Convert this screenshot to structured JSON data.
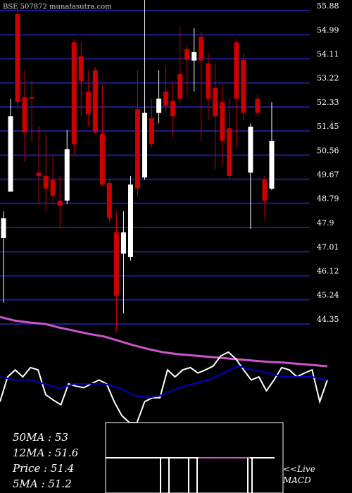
{
  "chart_data": [
    {
      "type": "candlestick",
      "title": "BSE 507872 munafasutra.com",
      "open": [
        47.51,
        49.22,
        55.75,
        52.69,
        52.69,
        49.92,
        49.79,
        49.66,
        48.89,
        48.89,
        54.71,
        54.2,
        52.9,
        53.68,
        51.35,
        49.53,
        47.72,
        46.94,
        46.81,
        52.25,
        49.74,
        51.92,
        52.12,
        52.9,
        52.56,
        53.55,
        54.46,
        54.04,
        54.92,
        53.94,
        53.03,
        52.51,
        51.55,
        54.71,
        54.07,
        49.92,
        52.64,
        49.66,
        49.33
      ],
      "high": [
        48.5,
        52.64,
        56.01,
        53.68,
        53.29,
        51.61,
        51.35,
        50.57,
        49.79,
        51.48,
        54.84,
        54.71,
        53.68,
        53.81,
        53.16,
        49.66,
        48.5,
        48.5,
        49.79,
        53.68,
        56.27,
        52.64,
        53.68,
        53.81,
        53.29,
        55.28,
        54.58,
        55.23,
        55.1,
        54.33,
        53.94,
        53.16,
        52.64,
        54.84,
        54.33,
        51.73,
        52.77,
        49.79,
        52.51
      ],
      "low": [
        45.13,
        49.22,
        52.38,
        50.31,
        51.09,
        48.76,
        48.5,
        48.76,
        47.85,
        48.76,
        50.57,
        51.99,
        51.61,
        51.35,
        49.4,
        48.11,
        44.09,
        44.74,
        46.68,
        49.01,
        49.66,
        50.83,
        51.73,
        52.12,
        51.22,
        52.51,
        52.77,
        52.9,
        51.09,
        51.86,
        50.05,
        50.18,
        49.66,
        50.83,
        51.86,
        47.85,
        51.99,
        48.24,
        49.27
      ],
      "close": [
        48.24,
        51.99,
        52.51,
        51.4,
        52.64,
        49.79,
        49.33,
        49.07,
        48.7,
        50.78,
        50.96,
        53.29,
        52.07,
        51.4,
        49.48,
        48.24,
        45.39,
        47.72,
        49.48,
        49.33,
        52.12,
        50.96,
        52.64,
        52.38,
        51.99,
        52.64,
        54.07,
        54.35,
        54.04,
        52.64,
        51.99,
        51.09,
        49.79,
        52.64,
        52.12,
        51.61,
        52.12,
        48.89,
        51.09
      ],
      "up_color": "#ffffff",
      "down_color": "#cc0000",
      "grid_color": "#1c1c8c",
      "ylim": [
        44.09,
        56.27
      ],
      "yticks": [
        55.88,
        54.99,
        54.11,
        53.22,
        52.33,
        51.45,
        50.56,
        49.67,
        48.79,
        47.9,
        47.01,
        46.12,
        45.24,
        44.35
      ]
    },
    {
      "type": "line",
      "ylim": [
        0,
        100
      ],
      "series": [
        {
          "color": "#cc55cc",
          "values": [
            89,
            83,
            80,
            78,
            72,
            67,
            62,
            58,
            51,
            44,
            38,
            33,
            30,
            28,
            26,
            24,
            22,
            20,
            18,
            17,
            15,
            13,
            11
          ]
        }
      ]
    },
    {
      "type": "line",
      "ylim": [
        0,
        100
      ],
      "series": [
        {
          "color": "#ffffff",
          "values": [
            27,
            59,
            68,
            59,
            71,
            68,
            36,
            29,
            23,
            50,
            47,
            45,
            50,
            55,
            50,
            27,
            9,
            0,
            0,
            27,
            32,
            32,
            68,
            59,
            68,
            71,
            64,
            68,
            73,
            86,
            91,
            82,
            68,
            55,
            59,
            41,
            55,
            71,
            68,
            59,
            64,
            68,
            27,
            55
          ]
        },
        {
          "color": "#0000cc",
          "values": [
            59,
            55,
            55,
            50,
            44,
            50,
            50,
            50,
            45,
            35,
            32,
            36,
            45,
            50,
            55,
            64,
            73,
            68,
            64,
            59,
            59,
            59,
            55
          ]
        }
      ]
    },
    {
      "type": "text",
      "lines": [
        "50MA : 53",
        "12MA : 51.6",
        "Price   : 51.4",
        "5MA : 51.2"
      ],
      "macd_label": "<<Live MACD"
    }
  ]
}
